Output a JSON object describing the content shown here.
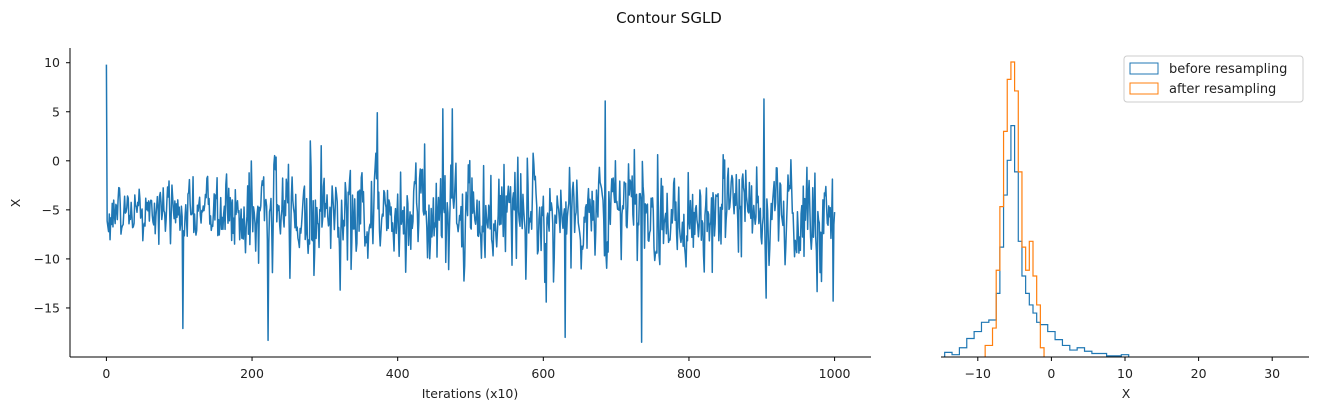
{
  "title": "Contour SGLD",
  "colors": {
    "series1": "#1f77b4",
    "series2": "#ff7f0e",
    "axis": "#000000"
  },
  "chart_data": [
    {
      "type": "line",
      "title": "",
      "xlabel": "Iterations (x10)",
      "ylabel": "X",
      "xlim": [
        -50,
        1050
      ],
      "ylim": [
        -20,
        11.5
      ],
      "xticks": [
        0,
        200,
        400,
        600,
        800,
        1000
      ],
      "yticks": [
        -15,
        -10,
        -5,
        0,
        5,
        10
      ],
      "grid": false,
      "series": [
        {
          "color": "#1f77b4",
          "summary": {
            "n_points": 1001,
            "start_value": 9.8,
            "mean": -5.2,
            "std": 2.6,
            "notable_points": [
              {
                "x": 0,
                "y": 9.8
              },
              {
                "x": 105,
                "y": -17.1
              },
              {
                "x": 222,
                "y": -18.3
              },
              {
                "x": 372,
                "y": 4.9
              },
              {
                "x": 462,
                "y": 5.3
              },
              {
                "x": 475,
                "y": 5.3
              },
              {
                "x": 604,
                "y": -14.4
              },
              {
                "x": 630,
                "y": -18.0
              },
              {
                "x": 685,
                "y": 6.1
              },
              {
                "x": 735,
                "y": -18.5
              },
              {
                "x": 903,
                "y": 6.3
              },
              {
                "x": 998,
                "y": -14.3
              }
            ]
          }
        }
      ]
    },
    {
      "type": "histogram",
      "title": "",
      "xlabel": "X",
      "ylabel": "",
      "xlim": [
        -15,
        35
      ],
      "xticks": [
        -10,
        0,
        10,
        20,
        30
      ],
      "histtype": "step",
      "legend_position": "top-right",
      "series": [
        {
          "name": "before resampling",
          "color": "#1f77b4",
          "bin_edges": [
            -14.5,
            -13.5,
            -12.5,
            -11.5,
            -10.5,
            -9.5,
            -8.5,
            -7.5,
            -7,
            -6.5,
            -6,
            -5.5,
            -5,
            -4.5,
            -4,
            -3.5,
            -3,
            -2.5,
            -2,
            -1.5,
            -0.5,
            0.5,
            1.5,
            2.5,
            3.5,
            4.5,
            5.5,
            7.5,
            9.5,
            10.5
          ],
          "counts": [
            4,
            2,
            8,
            16,
            22,
            30,
            32,
            55,
            95,
            140,
            170,
            200,
            160,
            100,
            70,
            55,
            45,
            38,
            30,
            28,
            22,
            15,
            10,
            6,
            8,
            5,
            3,
            1,
            2
          ]
        },
        {
          "name": "after resampling",
          "color": "#ff7f0e",
          "bin_edges": [
            -9,
            -8,
            -7.5,
            -7,
            -6.5,
            -6,
            -5.5,
            -5,
            -4.5,
            -4,
            -3.5,
            -3,
            -2.5,
            -2,
            -1.5,
            -1
          ],
          "counts": [
            10,
            25,
            75,
            130,
            195,
            240,
            255,
            230,
            160,
            95,
            75,
            100,
            70,
            45,
            8
          ]
        }
      ]
    }
  ]
}
